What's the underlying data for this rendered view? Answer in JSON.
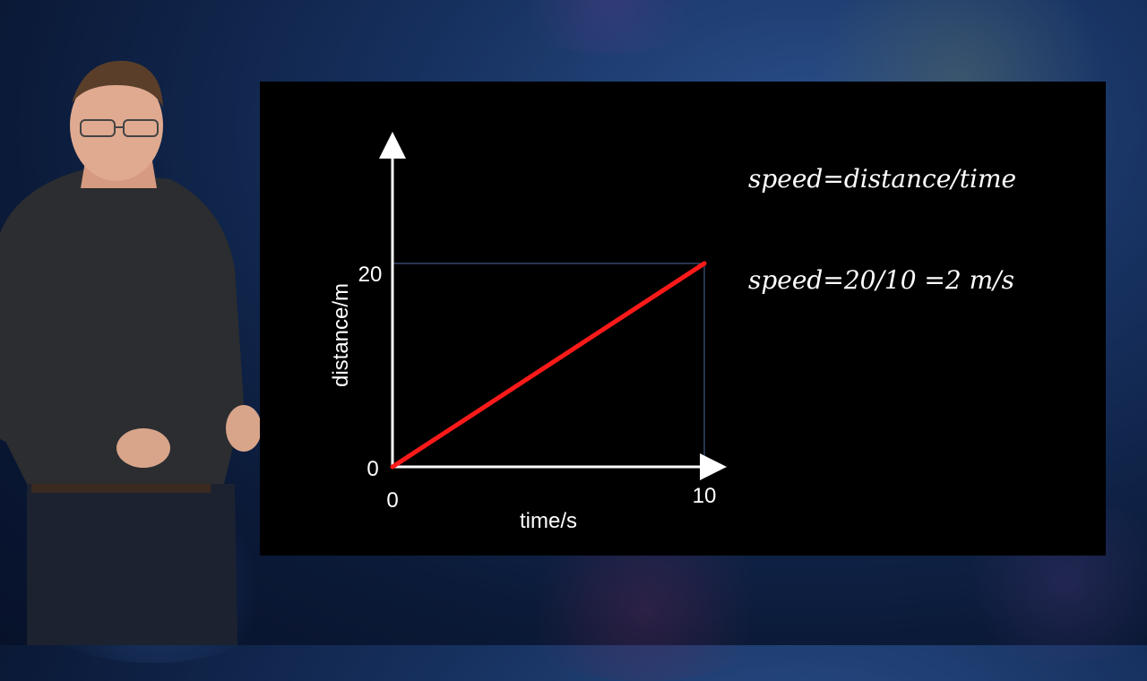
{
  "formulas": {
    "line1": "speed=distance/time",
    "line2": "speed=20/10 =2 m/s"
  },
  "colors": {
    "slide_background": "#000000",
    "axis": "#ffffff",
    "series_line": "#ff1a1a",
    "guide_lines": "#4a6aa0"
  },
  "chart_data": {
    "type": "line",
    "xlabel": "time/s",
    "ylabel": "distance/m",
    "xlim": [
      0,
      10
    ],
    "ylim": [
      0,
      20
    ],
    "x_ticks": [
      "0",
      "10"
    ],
    "y_ticks": [
      "0",
      "20"
    ],
    "series": [
      {
        "x": [
          0,
          10
        ],
        "y": [
          0,
          20
        ]
      }
    ],
    "guides": {
      "x": 10,
      "y": 20
    }
  }
}
